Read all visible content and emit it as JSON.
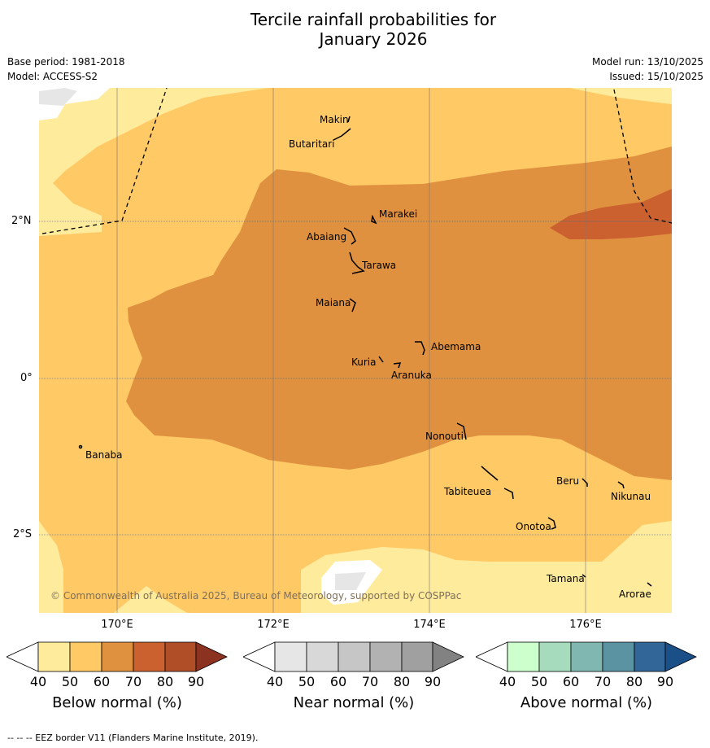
{
  "title_line1": "Tercile rainfall probabilities for",
  "title_line2": "January 2026",
  "base_period": "Base period: 1981-2018",
  "model": "Model: ACCESS-S2",
  "model_run": "Model run: 13/10/2025",
  "issued": "Issued: 15/10/2025",
  "copyright": "© Commonwealth of Australia 2025, Bureau of Meteorology, supported by COSPPac",
  "lat_labels": [
    "2°N",
    "0°",
    "2°S"
  ],
  "lon_labels": [
    "170°E",
    "172°E",
    "174°E",
    "176°E"
  ],
  "places": [
    "Makin",
    "Butaritari",
    "Marakei",
    "Abaiang",
    "Tarawa",
    "Maiana",
    "Abemama",
    "Kuria",
    "Aranuka",
    "Banaba",
    "Nonouti",
    "Beru",
    "Tabiteuea",
    "Nikunau",
    "Onotoa",
    "Tamana",
    "Arorae"
  ],
  "colorbars": [
    {
      "title": "Below normal (%)",
      "ticks": [
        "40",
        "50",
        "60",
        "70",
        "80",
        "90"
      ],
      "colors": [
        "#ffffff",
        "#ffeb9c",
        "#ffc966",
        "#e0913f",
        "#cc6130",
        "#b04e28",
        "#8b3220"
      ]
    },
    {
      "title": "Near normal (%)",
      "ticks": [
        "40",
        "50",
        "60",
        "70",
        "80",
        "90"
      ],
      "colors": [
        "#ffffff",
        "#e6e6e6",
        "#d8d8d8",
        "#c6c6c6",
        "#b2b2b2",
        "#a0a0a0",
        "#828282"
      ]
    },
    {
      "title": "Above normal (%)",
      "ticks": [
        "40",
        "50",
        "60",
        "70",
        "80",
        "90"
      ],
      "colors": [
        "#ffffff",
        "#ccffcc",
        "#a6dbbd",
        "#80b7b0",
        "#5b93a3",
        "#326699",
        "#1a4f88"
      ]
    }
  ],
  "footer": "--  --  -- EEZ border V11 (Flanders Marine Institute, 2019)."
}
